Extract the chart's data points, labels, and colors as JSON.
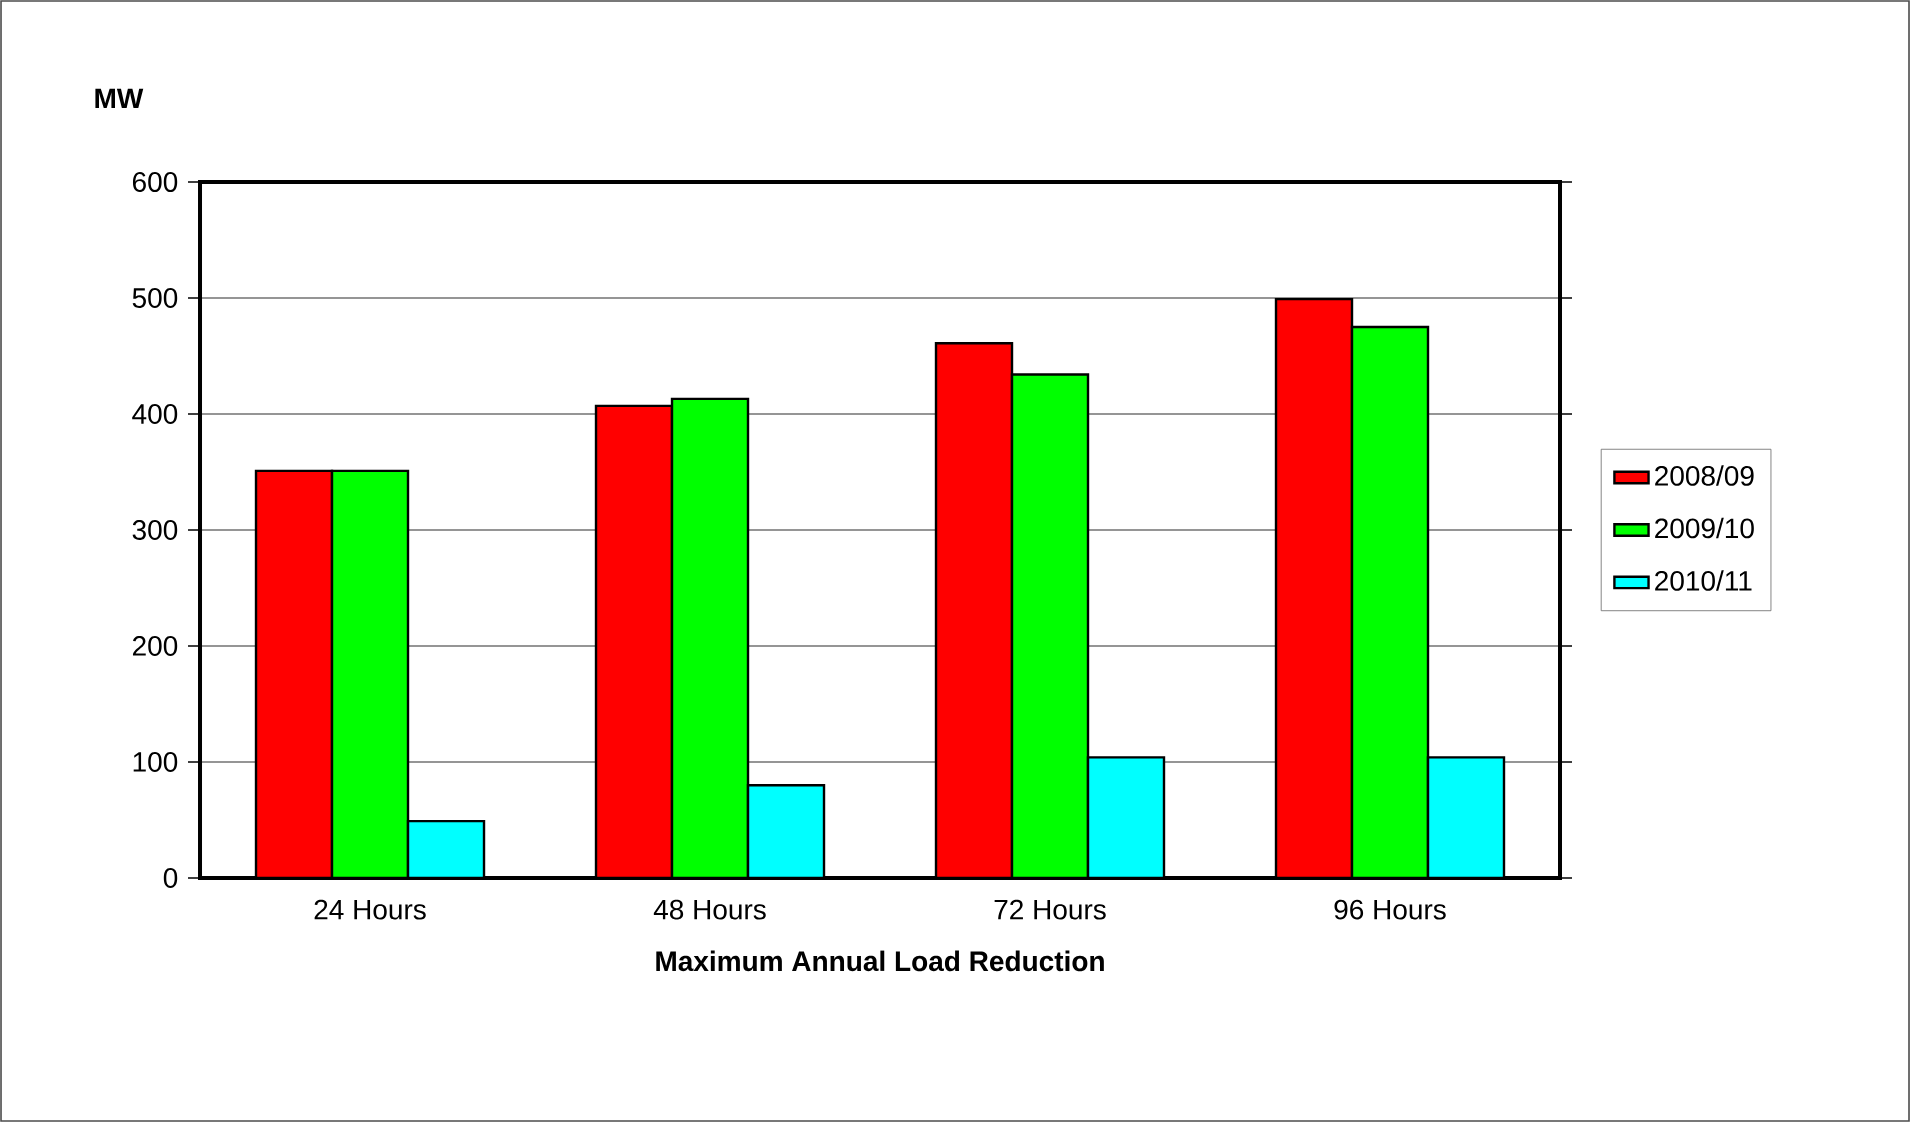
{
  "chart_data": {
    "type": "bar",
    "xlabel": "Maximum Annual Load Reduction",
    "ylabel": "MW",
    "categories": [
      "24 Hours",
      "48 Hours",
      "72 Hours",
      "96 Hours"
    ],
    "series": [
      {
        "name": "2008/09",
        "color": "#ff0000",
        "values": [
          351,
          407,
          461,
          499
        ]
      },
      {
        "name": "2009/10",
        "color": "#00ff00",
        "values": [
          351,
          413,
          434,
          475
        ]
      },
      {
        "name": "2010/11",
        "color": "#00ffff",
        "values": [
          49,
          80,
          104,
          104
        ]
      }
    ],
    "ylim": [
      0,
      600
    ],
    "yticks": [
      0,
      100,
      200,
      300,
      400,
      500,
      600
    ],
    "grid": "y",
    "legend": "right"
  }
}
